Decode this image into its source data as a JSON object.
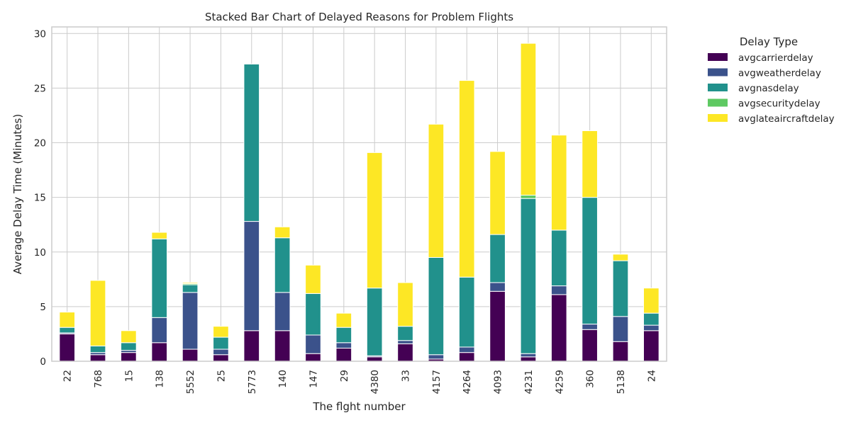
{
  "chart_data": {
    "type": "bar",
    "stacked": true,
    "title": "Stacked Bar Chart of Delayed Reasons for Problem Flights",
    "xlabel": "The flght number",
    "ylabel": "Average Delay Time (Minutes)",
    "ylim": [
      0,
      30.6
    ],
    "yticks": [
      0,
      5,
      10,
      15,
      20,
      25,
      30
    ],
    "grid": true,
    "legend_title": "Delay Type",
    "legend_position": "outside-right",
    "categories": [
      "22",
      "768",
      "15",
      "138",
      "5552",
      "25",
      "5773",
      "140",
      "147",
      "29",
      "4380",
      "33",
      "4157",
      "4264",
      "4093",
      "4231",
      "4259",
      "360",
      "5138",
      "24"
    ],
    "series": [
      {
        "name": "avgcarrierdelay",
        "color": "#440154",
        "values": [
          2.5,
          0.6,
          0.8,
          1.7,
          1.1,
          0.6,
          2.8,
          2.8,
          0.7,
          1.2,
          0.4,
          1.6,
          0.2,
          0.8,
          6.4,
          0.4,
          6.1,
          2.9,
          1.8,
          2.8
        ]
      },
      {
        "name": "avgweatherdelay",
        "color": "#3b528b",
        "values": [
          0.1,
          0.2,
          0.2,
          2.3,
          5.2,
          0.5,
          10.0,
          3.5,
          1.7,
          0.5,
          0.1,
          0.3,
          0.4,
          0.5,
          0.8,
          0.3,
          0.8,
          0.5,
          2.3,
          0.5
        ]
      },
      {
        "name": "avgnasdelay",
        "color": "#21918c",
        "values": [
          0.5,
          0.6,
          0.7,
          7.2,
          0.7,
          1.1,
          14.4,
          5.0,
          3.8,
          1.4,
          6.2,
          1.3,
          8.9,
          6.4,
          4.4,
          14.2,
          5.1,
          11.6,
          5.1,
          1.1
        ]
      },
      {
        "name": "avgsecuritydelay",
        "color": "#5ec962",
        "values": [
          0.0,
          0.0,
          0.0,
          0.0,
          0.1,
          0.0,
          0.0,
          0.0,
          0.0,
          0.0,
          0.0,
          0.0,
          0.0,
          0.0,
          0.0,
          0.3,
          0.0,
          0.0,
          0.0,
          0.0
        ]
      },
      {
        "name": "avglateaircraftdelay",
        "color": "#fde725",
        "values": [
          1.4,
          6.0,
          1.1,
          0.6,
          0.1,
          1.0,
          0.0,
          1.0,
          2.6,
          1.3,
          12.4,
          4.0,
          12.2,
          18.0,
          7.6,
          13.9,
          8.7,
          6.1,
          0.6,
          2.3
        ]
      }
    ]
  }
}
